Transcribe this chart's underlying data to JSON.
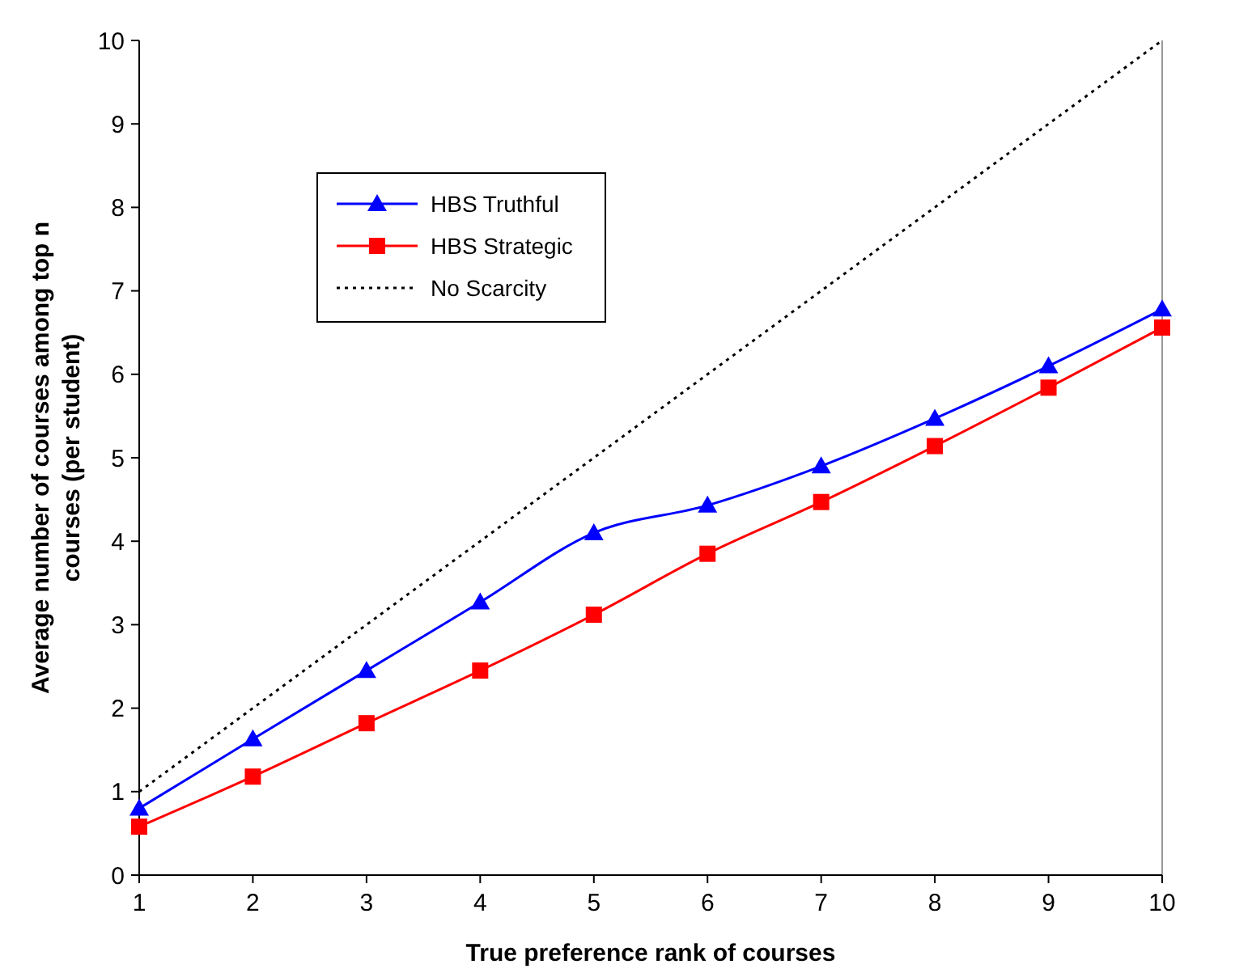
{
  "chart_data": {
    "type": "line",
    "xlabel": "True preference rank of courses",
    "ylabel": "Average number of courses among top n courses (per student)",
    "x": [
      1,
      2,
      3,
      4,
      5,
      6,
      7,
      8,
      9,
      10
    ],
    "series": [
      {
        "name": "HBS Truthful",
        "color": "#0000ff",
        "marker": "triangle",
        "line_style": "solid",
        "values": [
          0.8,
          1.63,
          2.45,
          3.27,
          4.1,
          4.43,
          4.9,
          5.47,
          6.1,
          6.78
        ]
      },
      {
        "name": "HBS Strategic",
        "color": "#ff0000",
        "marker": "square",
        "line_style": "solid",
        "values": [
          0.58,
          1.18,
          1.82,
          2.45,
          3.12,
          3.85,
          4.47,
          5.14,
          5.84,
          6.56
        ]
      },
      {
        "name": "No Scarcity",
        "color": "#000000",
        "marker": "none",
        "line_style": "dotted",
        "values": [
          1,
          2,
          3,
          4,
          5,
          6,
          7,
          8,
          9,
          10
        ]
      }
    ],
    "xlim": [
      1,
      10
    ],
    "xticks": [
      1,
      2,
      3,
      4,
      5,
      6,
      7,
      8,
      9,
      10
    ],
    "ylim": [
      0,
      10
    ],
    "yticks": [
      0,
      1,
      2,
      3,
      4,
      5,
      6,
      7,
      8,
      9,
      10
    ],
    "grid": false,
    "legend": "top left"
  }
}
